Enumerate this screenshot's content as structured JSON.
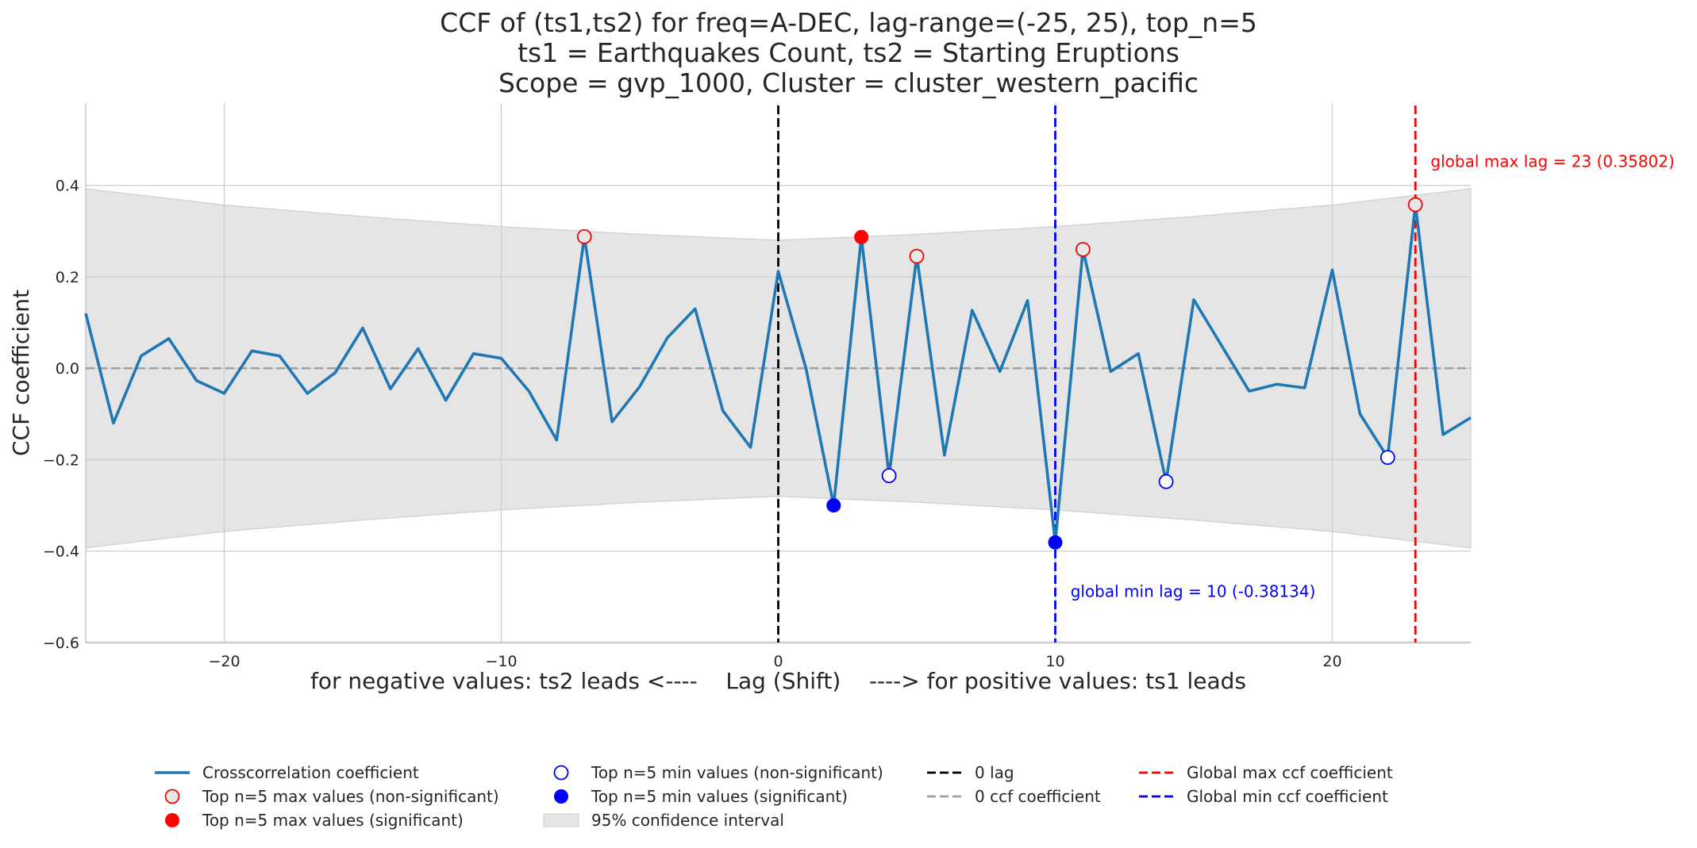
{
  "title_lines": [
    "CCF of (ts1,ts2) for freq=A-DEC, lag-range=(-25, 25), top_n=5",
    "ts1 = Earthquakes Count, ts2 = Starting Eruptions",
    "Scope = gvp_1000, Cluster = cluster_western_pacific"
  ],
  "chart_data": {
    "type": "line",
    "title": "CCF of (ts1,ts2) for freq=A-DEC, lag-range=(-25, 25), top_n=5\nts1 = Earthquakes Count, ts2 = Starting Eruptions\nScope = gvp_1000, Cluster = cluster_western_pacific",
    "xlabel": "for negative values: ts2 leads <----    Lag (Shift)    ----> for positive values: ts1 leads",
    "ylabel": "CCF coefficient",
    "xlim": [
      -25,
      25
    ],
    "ylim": [
      -0.6,
      0.58
    ],
    "x_ticks": [
      -20,
      -10,
      0,
      10,
      20
    ],
    "y_ticks": [
      -0.6,
      -0.4,
      -0.2,
      0.0,
      0.2,
      0.4
    ],
    "x_tick_labels": [
      "−20",
      "−10",
      "0",
      "10",
      "20"
    ],
    "y_tick_labels": [
      "−0.6",
      "−0.4",
      "−0.2",
      "0.0",
      "0.2",
      "0.4"
    ],
    "grid": true,
    "series": [
      {
        "name": "Crosscorrelation coefficient",
        "color": "#1f77b4",
        "x": [
          -25,
          -24,
          -23,
          -22,
          -21,
          -20,
          -19,
          -18,
          -17,
          -16,
          -15,
          -14,
          -13,
          -12,
          -11,
          -10,
          -9,
          -8,
          -7,
          -6,
          -5,
          -4,
          -3,
          -2,
          -1,
          0,
          1,
          2,
          3,
          4,
          5,
          6,
          7,
          8,
          9,
          10,
          11,
          12,
          13,
          14,
          15,
          16,
          17,
          18,
          19,
          20,
          21,
          22,
          23,
          24,
          25
        ],
        "y": [
          0.12,
          -0.12,
          0.027,
          0.065,
          -0.027,
          -0.055,
          0.038,
          0.027,
          -0.055,
          -0.01,
          0.088,
          -0.045,
          0.043,
          -0.07,
          0.032,
          0.022,
          -0.05,
          -0.157,
          0.288,
          -0.117,
          -0.04,
          0.067,
          0.13,
          -0.093,
          -0.173,
          0.212,
          0.0,
          -0.3,
          0.287,
          -0.235,
          0.245,
          -0.19,
          0.127,
          -0.007,
          0.148,
          -0.381,
          0.26,
          -0.007,
          0.032,
          -0.248,
          0.15,
          0.05,
          -0.05,
          -0.035,
          -0.043,
          0.215,
          -0.1,
          -0.195,
          0.358,
          -0.145,
          -0.108
        ]
      },
      {
        "name": "95% confidence interval",
        "color": "#e5e5e5",
        "x": [
          -25,
          -20,
          -15,
          -10,
          -5,
          0,
          5,
          10,
          15,
          20,
          25
        ],
        "upper": [
          0.393,
          0.357,
          0.332,
          0.31,
          0.293,
          0.28,
          0.293,
          0.31,
          0.332,
          0.357,
          0.393
        ],
        "lower": [
          -0.393,
          -0.357,
          -0.332,
          -0.31,
          -0.293,
          -0.28,
          -0.293,
          -0.31,
          -0.332,
          -0.357,
          -0.393
        ]
      }
    ],
    "markers": {
      "max_nonsig": {
        "x": [
          -7,
          5,
          11,
          23
        ],
        "y": [
          0.288,
          0.245,
          0.26,
          0.358
        ]
      },
      "max_sig": {
        "x": [
          3
        ],
        "y": [
          0.287
        ]
      },
      "min_nonsig": {
        "x": [
          4,
          14,
          22
        ],
        "y": [
          -0.235,
          -0.248,
          -0.195
        ]
      },
      "min_sig": {
        "x": [
          2,
          10
        ],
        "y": [
          -0.3,
          -0.381
        ]
      }
    },
    "vlines": [
      {
        "name": "0 lag",
        "x": 0,
        "color": "#000000"
      },
      {
        "name": "Global max ccf coefficient",
        "x": 23,
        "color": "#ff0000"
      },
      {
        "name": "Global min ccf coefficient",
        "x": 10,
        "color": "#0000ff"
      }
    ],
    "hlines": [
      {
        "name": "0 ccf coefficient",
        "y": 0,
        "color": "#a0a0a0"
      }
    ],
    "annotations": [
      {
        "text": "global max lag = 23 (0.35802)",
        "color": "#ff0000",
        "x": 23.55,
        "y": 0.44
      },
      {
        "text": "global min lag = 10 (-0.38134)",
        "color": "#0000ff",
        "x": 10.55,
        "y": -0.5
      }
    ],
    "legend_placement": "bottom-center",
    "legend": [
      {
        "label": "Crosscorrelation coefficient",
        "kind": "line",
        "color": "#1f77b4"
      },
      {
        "label": "Top n=5 max values (non-significant)",
        "kind": "marker-max-open",
        "color": "#ff0000"
      },
      {
        "label": "Top n=5 max values (significant)",
        "kind": "marker-filled",
        "color": "#ff0000"
      },
      {
        "label": "Top n=5 min values (non-significant)",
        "kind": "marker-min-open",
        "color": "#0000ff"
      },
      {
        "label": "Top n=5 min values (significant)",
        "kind": "marker-filled",
        "color": "#0000ff"
      },
      {
        "label": "95% confidence interval",
        "kind": "patch",
        "color": "#e5e5e5"
      },
      {
        "label": "0 lag",
        "kind": "dash",
        "color": "#000000"
      },
      {
        "label": "0 ccf coefficient",
        "kind": "dash",
        "color": "#a0a0a0"
      },
      {
        "label": "Global max ccf coefficient",
        "kind": "dash",
        "color": "#ff0000"
      },
      {
        "label": "Global min ccf coefficient",
        "kind": "dash",
        "color": "#0000ff"
      }
    ]
  }
}
